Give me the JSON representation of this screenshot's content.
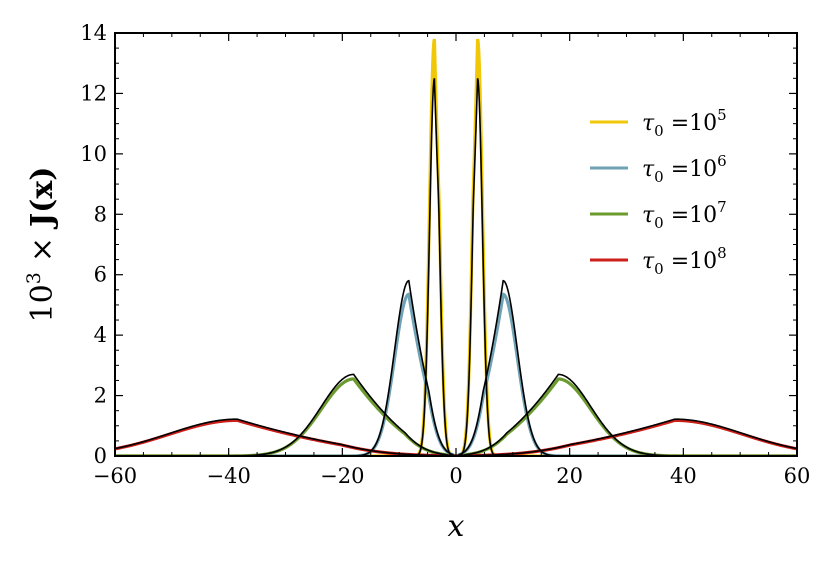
{
  "chart_data": {
    "type": "line",
    "title": "",
    "xlabel": "x",
    "ylabel": "10^3 × J(x)",
    "ylabel_parts": {
      "base": "10",
      "exp": "3",
      "times": "×",
      "func": "J(x)"
    },
    "xlim": [
      -60,
      60
    ],
    "ylim": [
      0,
      14
    ],
    "x_ticks": [
      -60,
      -40,
      -20,
      0,
      20,
      40,
      60
    ],
    "x_tick_labels": [
      "−60",
      "−40",
      "−20",
      "0",
      "20",
      "40",
      "60"
    ],
    "y_ticks": [
      0,
      2,
      4,
      6,
      8,
      10,
      12,
      14
    ],
    "y_tick_labels": [
      "0",
      "2",
      "4",
      "6",
      "8",
      "10",
      "12",
      "14"
    ],
    "grid": false,
    "legend_position": "top-right",
    "series": [
      {
        "name": "τ0 =10^5",
        "label_sym": "τ",
        "label_sub": "0",
        "label_eq": " =10",
        "label_exp": "5",
        "color": "#f0c808",
        "peak_x": 3.8,
        "peak_y": 13.8,
        "sigma": 0.85,
        "power": 2.0
      },
      {
        "name": "τ0 =10^6",
        "label_sym": "τ",
        "label_sub": "0",
        "label_eq": " =10",
        "label_exp": "6",
        "color": "#6fa2b5",
        "peak_x": 8.3,
        "peak_y": 5.35,
        "sigma": 2.5,
        "power": 1.8
      },
      {
        "name": "τ0 =10^7",
        "label_sym": "τ",
        "label_sub": "0",
        "label_eq": " =10",
        "label_exp": "7",
        "color": "#6b9a2e",
        "peak_x": 18.0,
        "peak_y": 2.55,
        "sigma": 5.7,
        "power": 1.8
      },
      {
        "name": "τ0 =10^8",
        "label_sym": "τ",
        "label_sub": "0",
        "label_eq": " =10",
        "label_exp": "8",
        "color": "#cc1f1a",
        "peak_x": 38.5,
        "peak_y": 1.18,
        "sigma": 12.0,
        "power": 1.8
      }
    ],
    "analytic_curves": {
      "color": "#000000",
      "peaks": [
        {
          "peak_x": 3.8,
          "peak_y": 12.5,
          "sigma": 0.85
        },
        {
          "peak_x": 8.3,
          "peak_y": 5.8,
          "sigma": 2.5
        },
        {
          "peak_x": 18.0,
          "peak_y": 2.7,
          "sigma": 5.7
        },
        {
          "peak_x": 38.5,
          "peak_y": 1.22,
          "sigma": 12.0
        }
      ]
    }
  }
}
